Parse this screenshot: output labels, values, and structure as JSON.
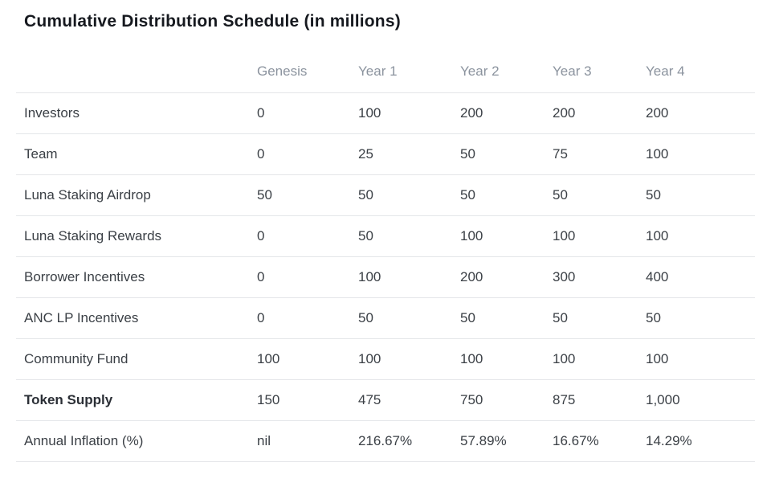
{
  "title": "Cumulative Distribution Schedule (in millions)",
  "chart_data": {
    "type": "table",
    "title": "Cumulative Distribution Schedule (in millions)",
    "columns": [
      "",
      "Genesis",
      "Year 1",
      "Year 2",
      "Year 3",
      "Year 4"
    ],
    "rows": [
      {
        "label": "Investors",
        "values": [
          "0",
          "100",
          "200",
          "200",
          "200"
        ],
        "bold": false
      },
      {
        "label": "Team",
        "values": [
          "0",
          "25",
          "50",
          "75",
          "100"
        ],
        "bold": false
      },
      {
        "label": "Luna Staking Airdrop",
        "values": [
          "50",
          "50",
          "50",
          "50",
          "50"
        ],
        "bold": false
      },
      {
        "label": "Luna Staking Rewards",
        "values": [
          "0",
          "50",
          "100",
          "100",
          "100"
        ],
        "bold": false
      },
      {
        "label": "Borrower Incentives",
        "values": [
          "0",
          "100",
          "200",
          "300",
          "400"
        ],
        "bold": false
      },
      {
        "label": "ANC LP Incentives",
        "values": [
          "0",
          "50",
          "50",
          "50",
          "50"
        ],
        "bold": false
      },
      {
        "label": "Community Fund",
        "values": [
          "100",
          "100",
          "100",
          "100",
          "100"
        ],
        "bold": false
      },
      {
        "label": "Token Supply",
        "values": [
          "150",
          "475",
          "750",
          "875",
          "1,000"
        ],
        "bold": true
      },
      {
        "label": "Annual Inflation (%)",
        "values": [
          "nil",
          "216.67%",
          "57.89%",
          "16.67%",
          "14.29%"
        ],
        "bold": false
      }
    ],
    "layout": {
      "header_text_color": "#8b939e",
      "body_text_color": "#3b4046",
      "divider_color": "#e4e6e9",
      "background_color": "#ffffff"
    }
  }
}
